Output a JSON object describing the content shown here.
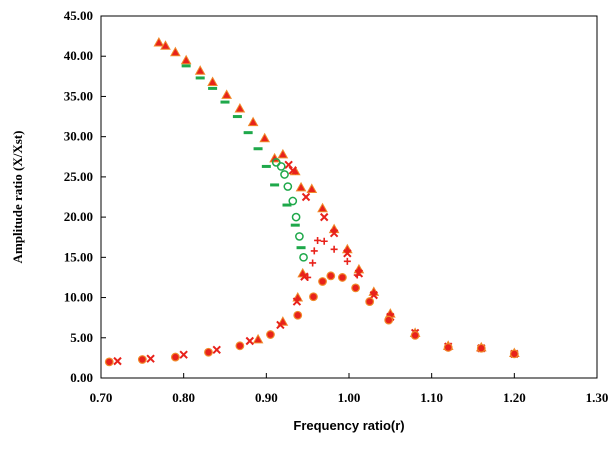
{
  "chart_data": {
    "type": "scatter",
    "title": "",
    "xlabel": "Frequency ratio(r)",
    "ylabel": "Amplitude  ratio (X/Xst)",
    "xlim": [
      0.7,
      1.3
    ],
    "ylim": [
      0.0,
      45.0
    ],
    "x_ticks": [
      "0.70",
      "0.80",
      "0.90",
      "1.00",
      "1.10",
      "1.20",
      "1.30"
    ],
    "y_ticks": [
      "0.00",
      "5.00",
      "10.00",
      "15.00",
      "20.00",
      "25.00",
      "30.00",
      "35.00",
      "40.00",
      "45.00"
    ],
    "grid": false,
    "legend": "none",
    "series": [
      {
        "marker": "triangle",
        "color": "#e8221b",
        "points": [
          [
            0.77,
            41.7
          ],
          [
            0.778,
            41.3
          ],
          [
            0.79,
            40.5
          ],
          [
            0.803,
            39.5
          ],
          [
            0.82,
            38.2
          ],
          [
            0.835,
            36.8
          ],
          [
            0.852,
            35.2
          ],
          [
            0.868,
            33.5
          ],
          [
            0.884,
            31.8
          ],
          [
            0.898,
            29.8
          ],
          [
            0.91,
            27.3
          ],
          [
            0.92,
            27.8
          ],
          [
            0.935,
            25.7
          ],
          [
            0.942,
            23.7
          ],
          [
            0.955,
            23.5
          ],
          [
            0.968,
            21.1
          ],
          [
            0.982,
            18.5
          ],
          [
            0.998,
            16.0
          ],
          [
            1.012,
            13.5
          ],
          [
            1.03,
            10.7
          ],
          [
            1.05,
            8.0
          ],
          [
            1.08,
            5.6
          ],
          [
            1.12,
            4.0
          ],
          [
            1.16,
            3.8
          ],
          [
            1.2,
            3.1
          ],
          [
            0.944,
            13.0
          ],
          [
            0.938,
            10.0
          ],
          [
            0.92,
            7.0
          ],
          [
            0.89,
            4.8
          ]
        ]
      },
      {
        "marker": "x",
        "color": "#e8221b",
        "points": [
          [
            0.72,
            2.1
          ],
          [
            0.76,
            2.4
          ],
          [
            0.8,
            2.9
          ],
          [
            0.84,
            3.5
          ],
          [
            0.88,
            4.6
          ],
          [
            0.917,
            6.6
          ],
          [
            0.937,
            9.5
          ],
          [
            0.946,
            12.6
          ],
          [
            0.927,
            26.5
          ],
          [
            0.932,
            25.8
          ],
          [
            0.948,
            22.5
          ],
          [
            0.97,
            20.0
          ],
          [
            0.982,
            18.0
          ],
          [
            0.998,
            15.5
          ],
          [
            1.012,
            13.0
          ],
          [
            1.03,
            10.3
          ],
          [
            1.05,
            7.6
          ],
          [
            1.08,
            5.6
          ],
          [
            1.12,
            3.9
          ],
          [
            1.16,
            3.7
          ],
          [
            1.2,
            3.0
          ]
        ]
      },
      {
        "marker": "plus",
        "color": "#e8221b",
        "points": [
          [
            0.95,
            12.5
          ],
          [
            0.956,
            14.3
          ],
          [
            0.958,
            15.8
          ],
          [
            0.962,
            17.1
          ],
          [
            0.97,
            17.0
          ],
          [
            0.982,
            16.0
          ],
          [
            0.998,
            14.5
          ],
          [
            1.01,
            12.8
          ]
        ]
      },
      {
        "marker": "dash",
        "color": "#1ea84a",
        "points": [
          [
            0.803,
            38.8
          ],
          [
            0.82,
            37.3
          ],
          [
            0.835,
            36.0
          ],
          [
            0.85,
            34.3
          ],
          [
            0.865,
            32.5
          ],
          [
            0.878,
            30.5
          ],
          [
            0.89,
            28.5
          ],
          [
            0.9,
            26.3
          ],
          [
            0.91,
            24.0
          ],
          [
            0.925,
            21.5
          ],
          [
            0.935,
            19.0
          ],
          [
            0.942,
            16.2
          ]
        ]
      },
      {
        "marker": "circle-open",
        "color": "#1ea84a",
        "points": [
          [
            0.912,
            26.8
          ],
          [
            0.918,
            26.3
          ],
          [
            0.922,
            25.3
          ],
          [
            0.926,
            23.8
          ],
          [
            0.932,
            22.0
          ],
          [
            0.936,
            20.0
          ],
          [
            0.94,
            17.6
          ],
          [
            0.945,
            15.0
          ]
        ]
      },
      {
        "marker": "circle-filled",
        "color": "#e8221b",
        "points": [
          [
            0.71,
            2.0
          ],
          [
            0.75,
            2.3
          ],
          [
            0.79,
            2.6
          ],
          [
            0.83,
            3.2
          ],
          [
            0.868,
            4.0
          ],
          [
            0.905,
            5.4
          ],
          [
            0.938,
            7.8
          ],
          [
            0.957,
            10.1
          ],
          [
            0.968,
            12.0
          ],
          [
            0.978,
            12.7
          ],
          [
            0.992,
            12.5
          ],
          [
            1.008,
            11.2
          ],
          [
            1.025,
            9.5
          ],
          [
            1.048,
            7.2
          ],
          [
            1.08,
            5.3
          ],
          [
            1.12,
            3.8
          ],
          [
            1.16,
            3.7
          ],
          [
            1.2,
            3.0
          ]
        ]
      }
    ]
  }
}
